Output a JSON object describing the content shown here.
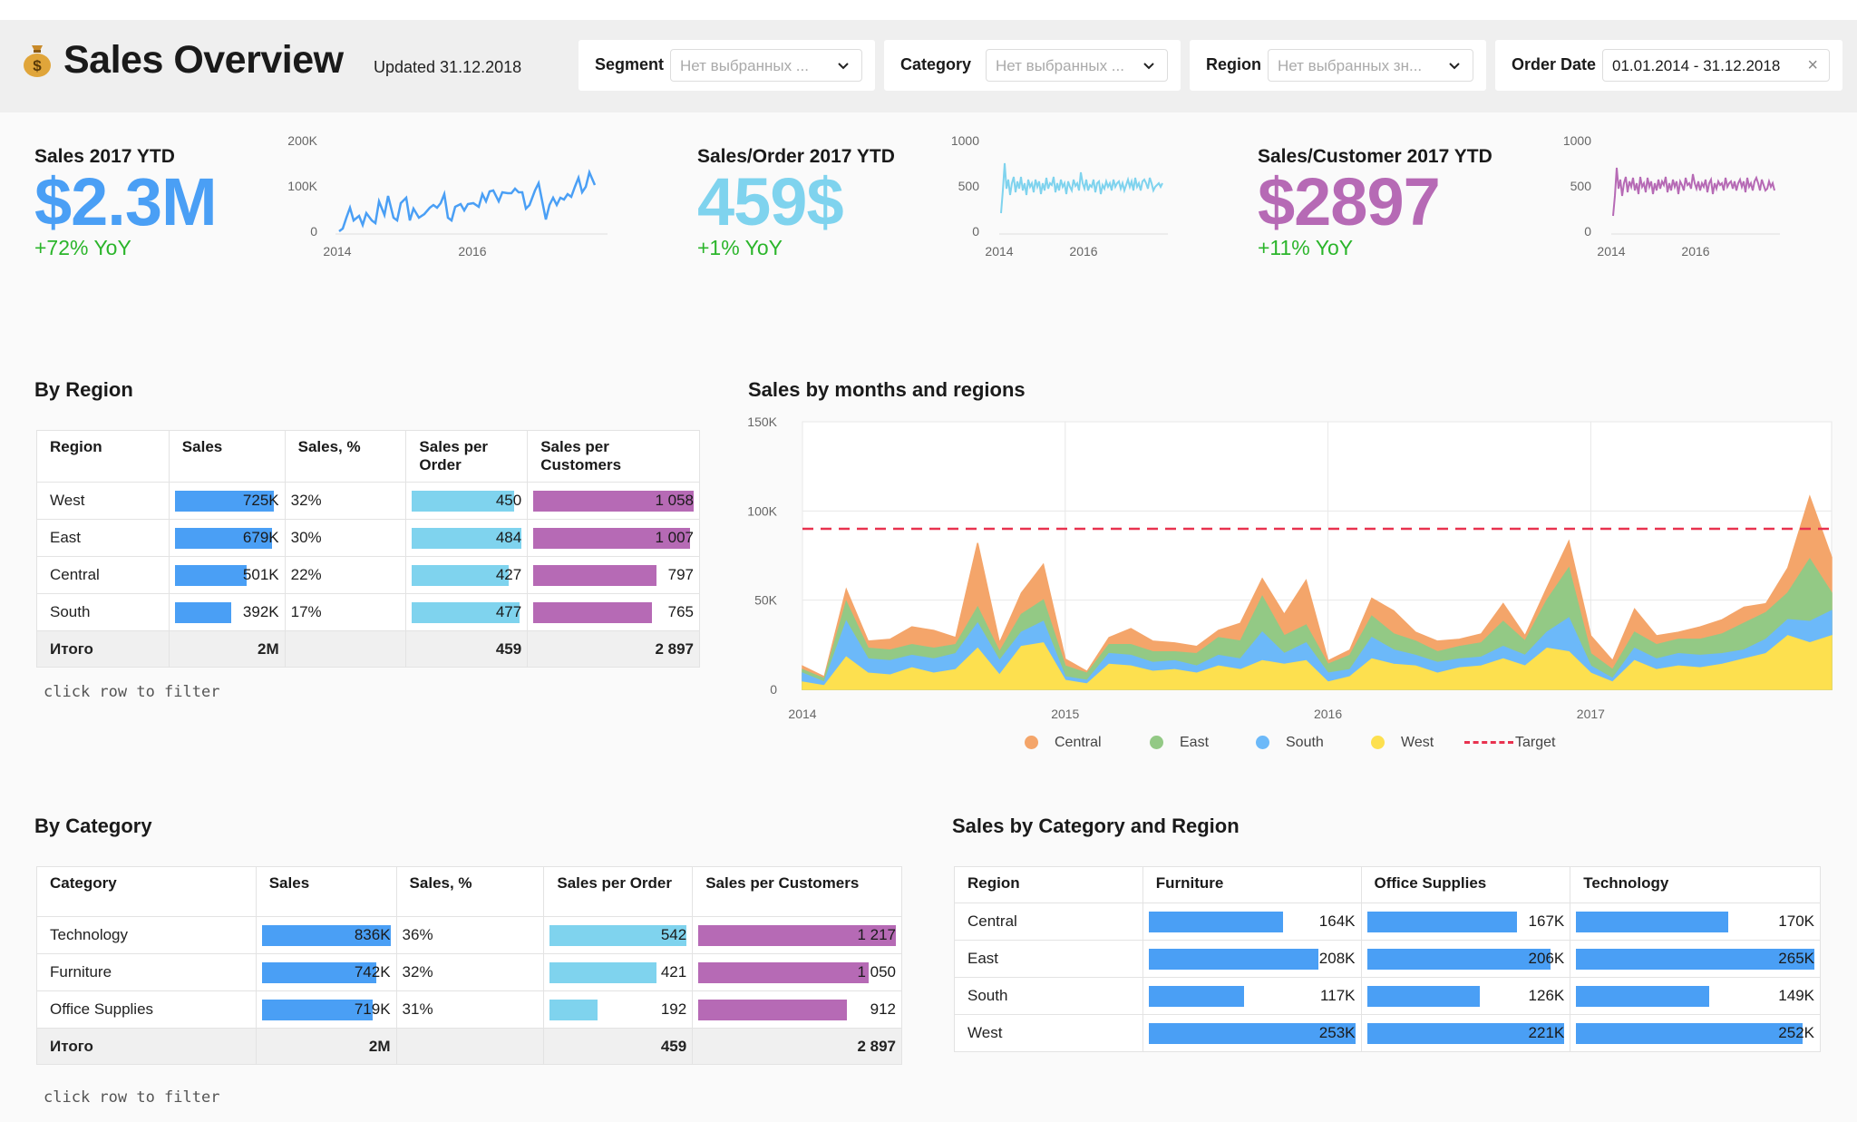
{
  "header": {
    "title": "Sales Overview",
    "updated": "Updated 31.12.2018",
    "logo_icon": "money-bag-icon"
  },
  "filters": [
    {
      "label": "Segment",
      "value": "Нет выбранных ..."
    },
    {
      "label": "Category",
      "value": "Нет выбранных ..."
    },
    {
      "label": "Region",
      "value": "Нет выбранных зн..."
    },
    {
      "label": "Order Date",
      "value": "01.01.2014 - 31.12.2018"
    }
  ],
  "kpis": [
    {
      "label": "Sales 2017 YTD",
      "value": "$2.3M",
      "yoy": "+72% YoY",
      "color": "#4a9ff5",
      "spark": {
        "y_ticks": [
          "200K",
          "100K",
          "0"
        ],
        "x_ticks": [
          "2014",
          "2016"
        ],
        "color": "#4a9ff5"
      }
    },
    {
      "label": "Sales/Order 2017 YTD",
      "value": "459$",
      "yoy": "+1% YoY",
      "color": "#7fd3ee",
      "spark": {
        "y_ticks": [
          "1000",
          "500",
          "0"
        ],
        "x_ticks": [
          "2014",
          "2016"
        ],
        "color": "#7fd3ee"
      }
    },
    {
      "label": "Sales/Customer 2017 YTD",
      "value": "$2897",
      "yoy": "+11% YoY",
      "color": "#b66ab5",
      "spark": {
        "y_ticks": [
          "1000",
          "500",
          "0"
        ],
        "x_ticks": [
          "2014",
          "2016"
        ],
        "color": "#b66ab5"
      }
    }
  ],
  "by_region": {
    "title": "By Region",
    "columns": [
      "Region",
      "Sales",
      "Sales, %",
      "Sales per Order",
      "Sales per Customers"
    ],
    "rows": [
      {
        "name": "West",
        "sales": "725K",
        "sales_frac": 0.95,
        "pct": "32%",
        "spo": "450",
        "spo_frac": 0.93,
        "spc": "1 058",
        "spc_frac": 1.0
      },
      {
        "name": "East",
        "sales": "679K",
        "sales_frac": 0.93,
        "pct": "30%",
        "spo": "484",
        "spo_frac": 1.0,
        "spc": "1 007",
        "spc_frac": 0.98
      },
      {
        "name": "Central",
        "sales": "501K",
        "sales_frac": 0.69,
        "pct": "22%",
        "spo": "427",
        "spo_frac": 0.88,
        "spc": "797",
        "spc_frac": 0.77
      },
      {
        "name": "South",
        "sales": "392K",
        "sales_frac": 0.54,
        "pct": "17%",
        "spo": "477",
        "spo_frac": 0.98,
        "spc": "765",
        "spc_frac": 0.74
      }
    ],
    "total": {
      "name": "Итого",
      "sales": "2M",
      "pct": "",
      "spo": "459",
      "spc": "2 897"
    },
    "hint": "click row to filter"
  },
  "by_category": {
    "title": "By Category",
    "columns": [
      "Category",
      "Sales",
      "Sales, %",
      "Sales per Order",
      "Sales per Customers"
    ],
    "rows": [
      {
        "name": "Technology",
        "sales": "836K",
        "sales_frac": 1.0,
        "pct": "36%",
        "spo": "542",
        "spo_frac": 1.0,
        "spc": "1 217",
        "spc_frac": 1.0
      },
      {
        "name": "Furniture",
        "sales": "742K",
        "sales_frac": 0.89,
        "pct": "32%",
        "spo": "421",
        "spo_frac": 0.78,
        "spc": "1 050",
        "spc_frac": 0.86
      },
      {
        "name": "Office Supplies",
        "sales": "719K",
        "sales_frac": 0.86,
        "pct": "31%",
        "spo": "192",
        "spo_frac": 0.35,
        "spc": "912",
        "spc_frac": 0.75
      }
    ],
    "total": {
      "name": "Итого",
      "sales": "2M",
      "pct": "",
      "spo": "459",
      "spc": "2 897"
    },
    "hint": "click row to filter"
  },
  "cat_region": {
    "title": "Sales by Category and Region",
    "columns": [
      "Region",
      "Furniture",
      "Office Supplies",
      "Technology"
    ],
    "rows": [
      {
        "name": "Central",
        "furn": "164K",
        "furn_frac": 0.65,
        "off": "167K",
        "off_frac": 0.76,
        "tech": "170K",
        "tech_frac": 0.64
      },
      {
        "name": "East",
        "furn": "208K",
        "furn_frac": 0.82,
        "off": "206K",
        "off_frac": 0.93,
        "tech": "265K",
        "tech_frac": 1.0
      },
      {
        "name": "South",
        "furn": "117K",
        "furn_frac": 0.46,
        "off": "126K",
        "off_frac": 0.57,
        "tech": "149K",
        "tech_frac": 0.56
      },
      {
        "name": "West",
        "furn": "253K",
        "furn_frac": 1.0,
        "off": "221K",
        "off_frac": 1.0,
        "tech": "252K",
        "tech_frac": 0.95
      }
    ]
  },
  "colors": {
    "sales_bar": "#4a9ff5",
    "spo_bar": "#7fd3ee",
    "spc_bar": "#b66ab5",
    "target": "#e8324f"
  },
  "chart_data": {
    "type": "area",
    "title": "Sales by months and regions",
    "y_ticks": [
      "150K",
      "100K",
      "50K",
      "0"
    ],
    "x_ticks": [
      "2014",
      "2015",
      "2016",
      "2017"
    ],
    "ylim": [
      0,
      150000
    ],
    "stacked": true,
    "x_start": "2014-01",
    "months": 48,
    "target": {
      "name": "Target",
      "value": 90000
    },
    "series": [
      {
        "name": "West",
        "color": "#fde04f",
        "values": [
          4000,
          2000,
          18000,
          9000,
          8000,
          12000,
          9000,
          11000,
          23000,
          8000,
          24000,
          26000,
          5000,
          3000,
          14000,
          13000,
          10000,
          11000,
          9000,
          13000,
          11000,
          16000,
          14000,
          16000,
          4000,
          7000,
          17000,
          14000,
          13000,
          9000,
          12000,
          13000,
          17000,
          13000,
          23000,
          21000,
          9000,
          4000,
          16000,
          11000,
          13000,
          12000,
          14000,
          17000,
          20000,
          30000,
          26000,
          30000
        ]
      },
      {
        "name": "South",
        "color": "#6cb9f9",
        "values": [
          5000,
          2000,
          20000,
          8000,
          8000,
          7000,
          8000,
          9000,
          14000,
          8000,
          8000,
          12000,
          2000,
          2000,
          6000,
          6000,
          5000,
          5000,
          4000,
          6000,
          6000,
          16000,
          6000,
          10000,
          5000,
          4000,
          12000,
          8000,
          6000,
          6000,
          5000,
          5000,
          7000,
          6000,
          9000,
          19000,
          4000,
          2000,
          7000,
          6000,
          7000,
          7000,
          6000,
          5000,
          8000,
          9000,
          12000,
          14000
        ]
      },
      {
        "name": "East",
        "color": "#93c985",
        "values": [
          2000,
          2000,
          11000,
          6000,
          6000,
          6000,
          6000,
          5000,
          9000,
          5000,
          10000,
          12000,
          6000,
          4000,
          5000,
          6000,
          6000,
          5000,
          7000,
          10000,
          10000,
          20000,
          10000,
          10000,
          5000,
          8000,
          12000,
          9000,
          8000,
          6000,
          7000,
          8000,
          14000,
          8000,
          18000,
          28000,
          7000,
          5000,
          9000,
          8000,
          8000,
          9000,
          11000,
          15000,
          15000,
          15000,
          35000,
          10000
        ]
      },
      {
        "name": "Central",
        "color": "#f4a56a",
        "values": [
          2000,
          1000,
          7000,
          4000,
          6000,
          10000,
          10000,
          4000,
          36000,
          5000,
          12000,
          20000,
          4000,
          1000,
          4000,
          9000,
          6000,
          5000,
          4000,
          4000,
          10000,
          10000,
          12000,
          25000,
          2000,
          3000,
          10000,
          13000,
          5000,
          6000,
          4000,
          5000,
          10000,
          3000,
          7000,
          15000,
          10000,
          5000,
          13000,
          5000,
          4000,
          7000,
          8000,
          9000,
          5000,
          14000,
          35000,
          20000
        ]
      }
    ]
  }
}
